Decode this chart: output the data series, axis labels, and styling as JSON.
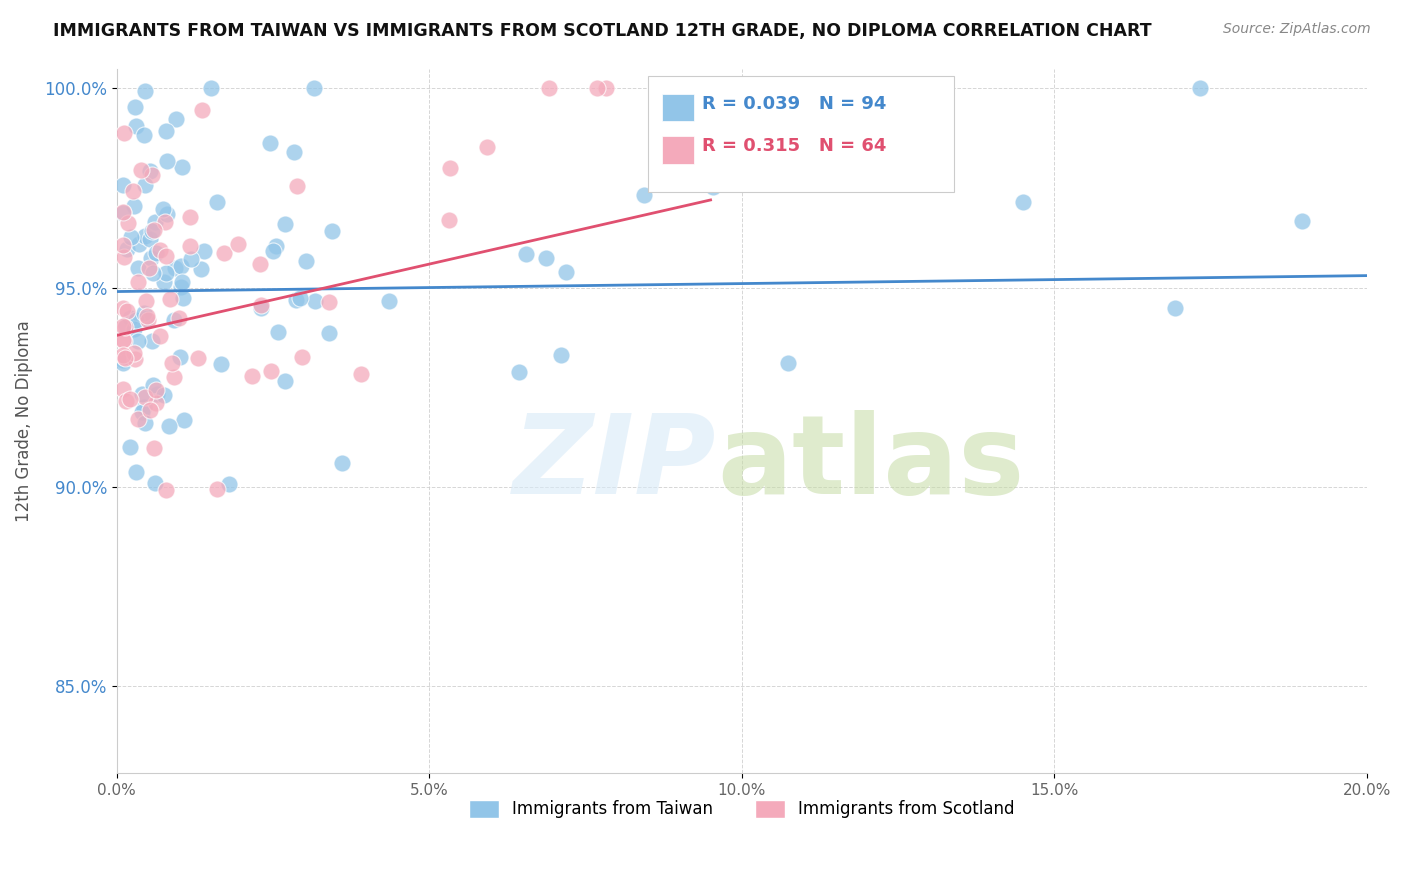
{
  "title": "IMMIGRANTS FROM TAIWAN VS IMMIGRANTS FROM SCOTLAND 12TH GRADE, NO DIPLOMA CORRELATION CHART",
  "source": "Source: ZipAtlas.com",
  "xlabel_taiwan": "Immigrants from Taiwan",
  "xlabel_scotland": "Immigrants from Scotland",
  "ylabel": "12th Grade, No Diploma",
  "xlim": [
    0.0,
    0.2
  ],
  "ylim": [
    0.828,
    1.005
  ],
  "yticks": [
    0.85,
    0.9,
    0.95,
    1.0
  ],
  "ytick_labels": [
    "85.0%",
    "90.0%",
    "95.0%",
    "100.0%"
  ],
  "xticks": [
    0.0,
    0.05,
    0.1,
    0.15,
    0.2
  ],
  "xtick_labels": [
    "0.0%",
    "5.0%",
    "10.0%",
    "15.0%",
    "20.0%"
  ],
  "taiwan_color": "#92C5E8",
  "scotland_color": "#F4AABB",
  "taiwan_line_color": "#4488CC",
  "scotland_line_color": "#E05070",
  "taiwan_R": 0.039,
  "taiwan_N": 94,
  "scotland_R": 0.315,
  "scotland_N": 64,
  "background_color": "#ffffff",
  "taiwan_trend_x": [
    0.0,
    0.2
  ],
  "taiwan_trend_y": [
    0.949,
    0.953
  ],
  "scotland_trend_x": [
    0.0,
    0.095
  ],
  "scotland_trend_y": [
    0.938,
    0.972
  ]
}
